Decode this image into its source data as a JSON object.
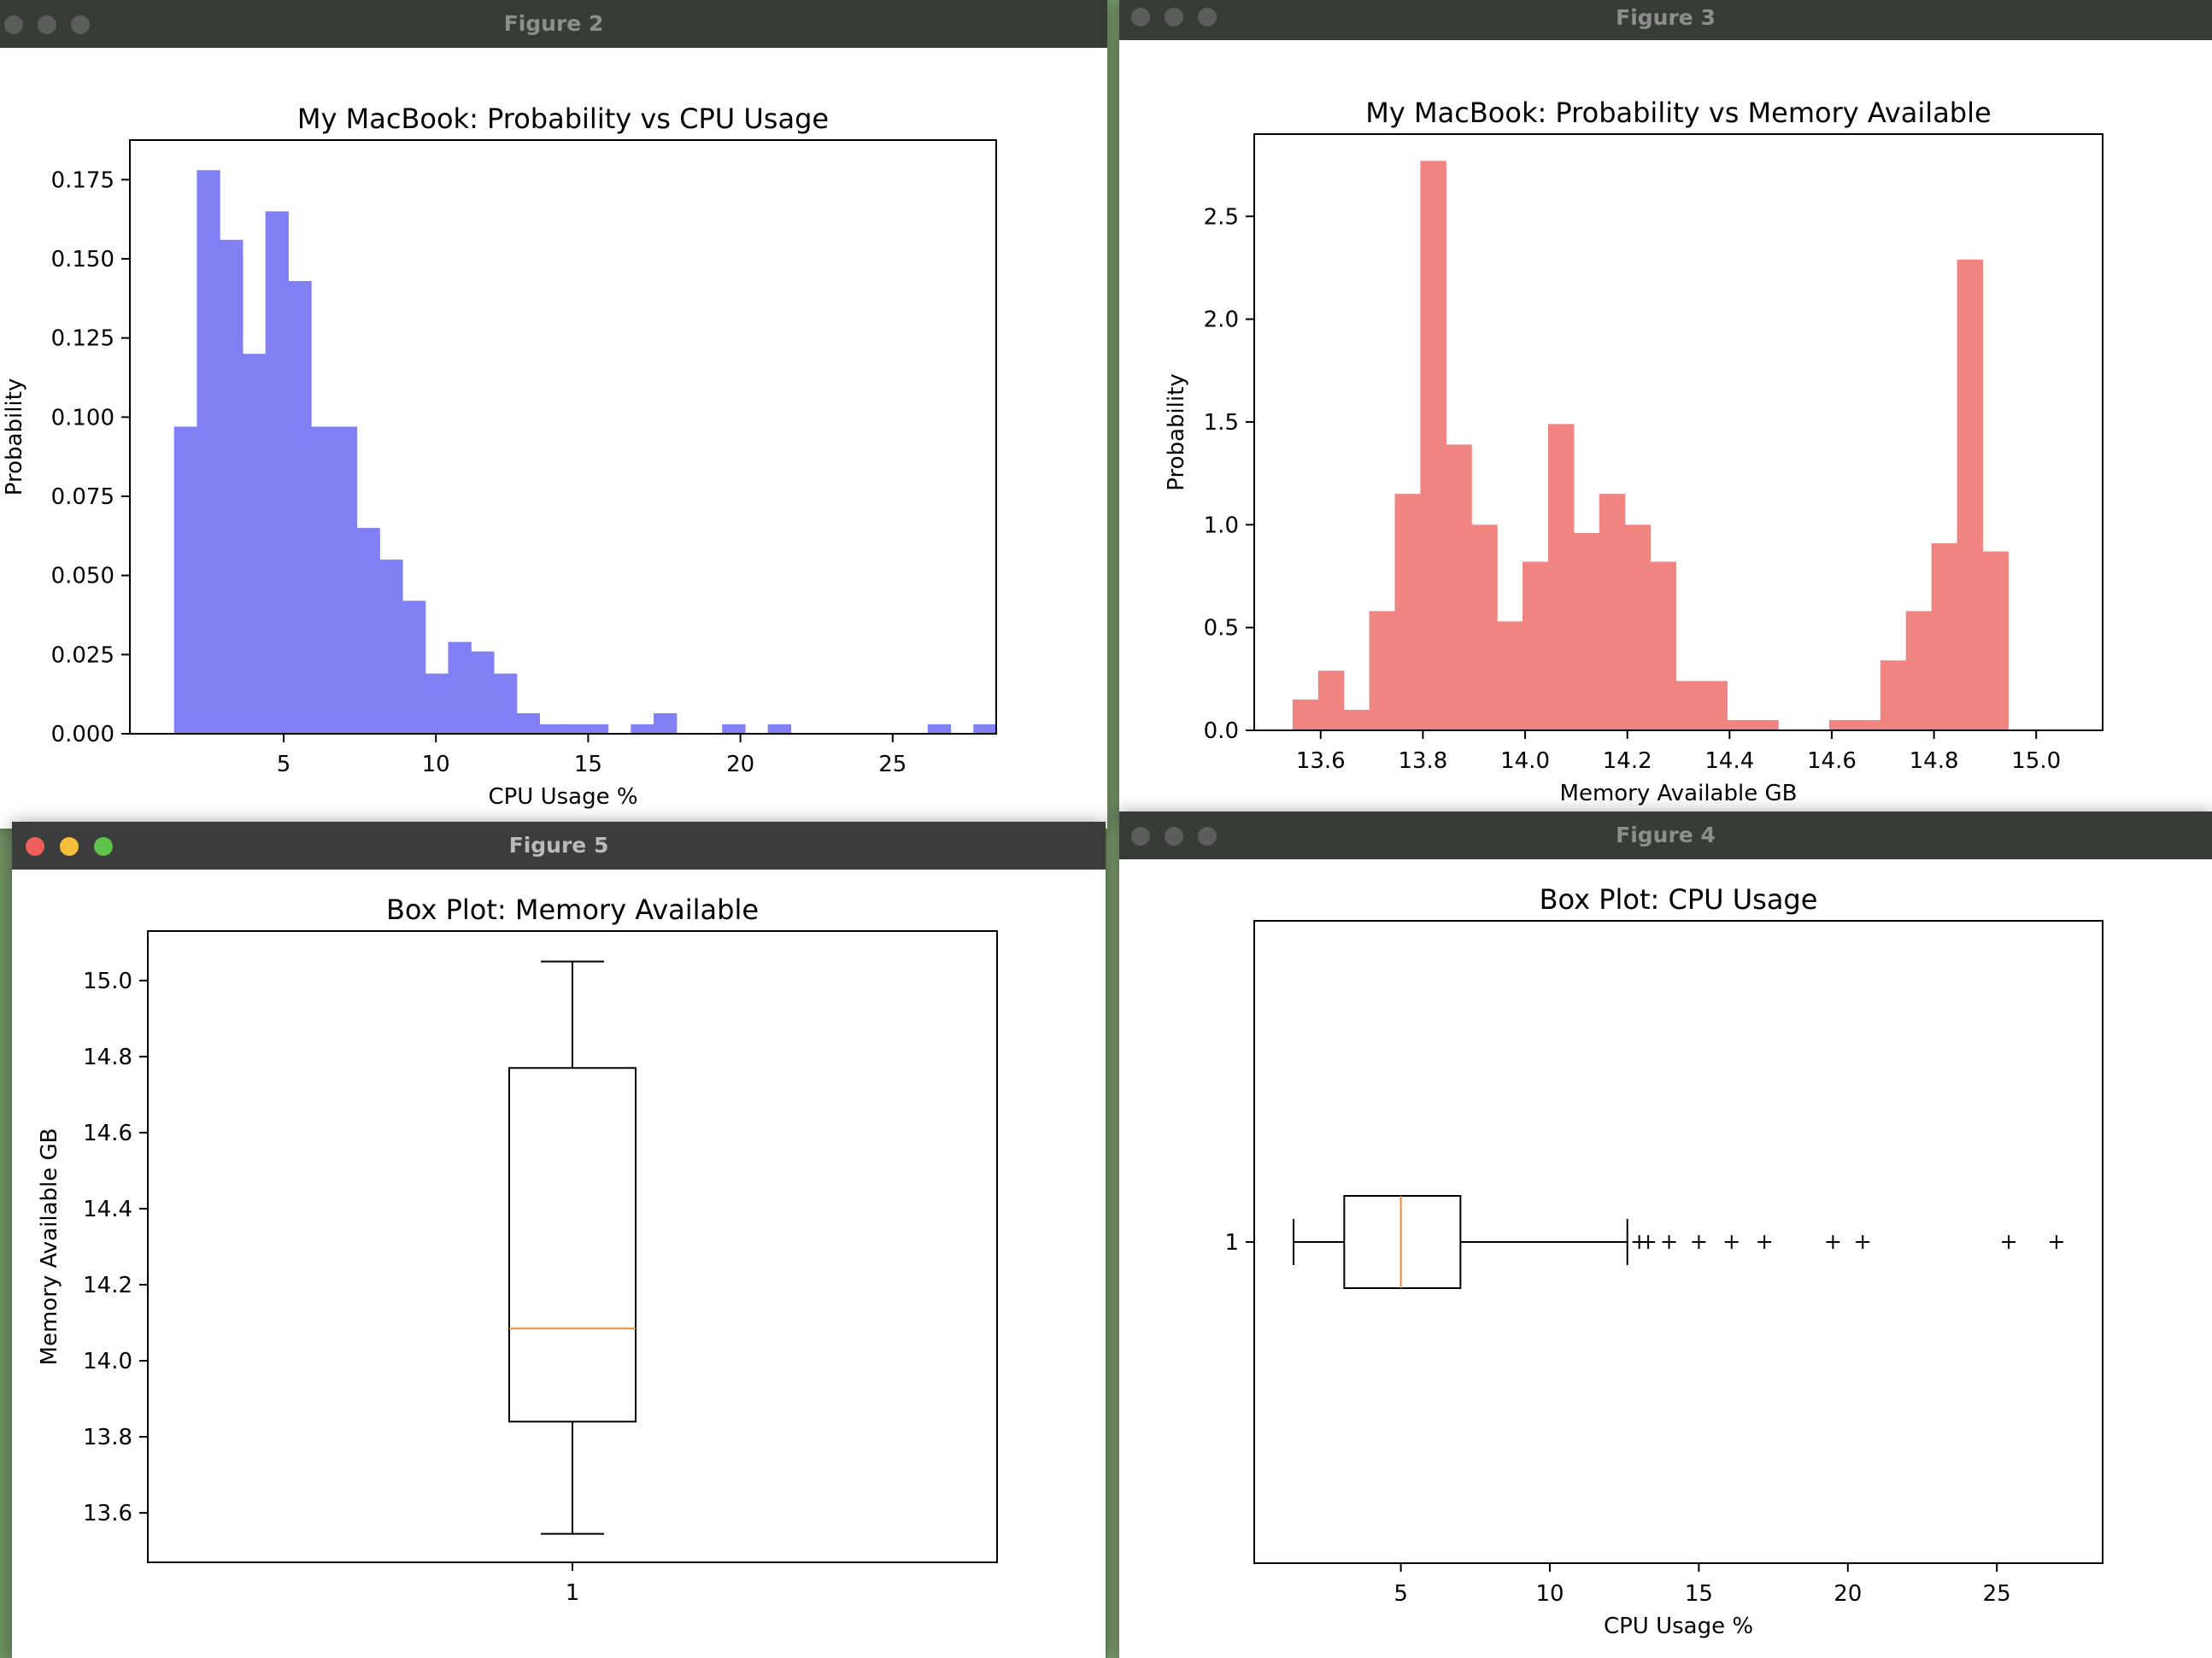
{
  "windows": {
    "fig2": {
      "title": "Figure 2"
    },
    "fig3": {
      "title": "Figure 3"
    },
    "fig5": {
      "title": "Figure 5"
    },
    "fig4": {
      "title": "Figure 4"
    }
  },
  "chart_data": [
    {
      "id": "fig2",
      "type": "bar",
      "title": "My MacBook: Probability vs CPU Usage",
      "xlabel": "CPU Usage %",
      "ylabel": "Probability",
      "xlim": [
        -0.05,
        28.4
      ],
      "ylim": [
        0,
        0.1875
      ],
      "xticks": [
        5,
        10,
        15,
        20,
        25
      ],
      "yticks": [
        0.0,
        0.025,
        0.05,
        0.075,
        0.1,
        0.125,
        0.15,
        0.175
      ],
      "ytick_labels": [
        "0.000",
        "0.025",
        "0.050",
        "0.075",
        "0.100",
        "0.125",
        "0.150",
        "0.175"
      ],
      "color": "#8080f4",
      "bin_start": 1.4,
      "bin_width": 0.75,
      "values": [
        0.097,
        0.178,
        0.156,
        0.12,
        0.165,
        0.143,
        0.097,
        0.097,
        0.065,
        0.055,
        0.042,
        0.019,
        0.029,
        0.026,
        0.019,
        0.0065,
        0.003,
        0.003,
        0.003,
        0,
        0.003,
        0.0065,
        0,
        0,
        0.003,
        0,
        0.003,
        0,
        0,
        0,
        0,
        0,
        0,
        0.003,
        0,
        0.003
      ],
      "grid": false
    },
    {
      "id": "fig3",
      "type": "bar",
      "title": "My MacBook: Probability vs Memory Available",
      "xlabel": "Memory Available GB",
      "ylabel": "Probability",
      "xlim": [
        13.47,
        15.13
      ],
      "ylim": [
        0,
        2.9
      ],
      "xticks": [
        13.6,
        13.8,
        14.0,
        14.2,
        14.4,
        14.6,
        14.8,
        15.0
      ],
      "xtick_labels": [
        "13.6",
        "13.8",
        "14.0",
        "14.2",
        "14.4",
        "14.6",
        "14.8",
        "15.0"
      ],
      "yticks": [
        0.0,
        0.5,
        1.0,
        1.5,
        2.0,
        2.5
      ],
      "ytick_labels": [
        "0.0",
        "0.5",
        "1.0",
        "1.5",
        "2.0",
        "2.5"
      ],
      "color": "#ef8480",
      "bin_start": 13.545,
      "bin_width": 0.05,
      "values": [
        0.15,
        0.29,
        0.1,
        0.58,
        1.15,
        2.77,
        1.39,
        1.0,
        0.53,
        0.82,
        1.49,
        0.96,
        1.15,
        1.0,
        0.82,
        0.24,
        0.24,
        0.05,
        0.05,
        0,
        0,
        0.05,
        0.05,
        0.34,
        0.58,
        0.91,
        2.29,
        0.87
      ],
      "grid": false
    },
    {
      "id": "fig5",
      "type": "box",
      "orientation": "vertical",
      "title": "Box Plot: Memory Available",
      "ylabel": "Memory Available GB",
      "xtick_labels": [
        "1"
      ],
      "ylim": [
        13.47,
        15.13
      ],
      "yticks": [
        13.6,
        13.8,
        14.0,
        14.2,
        14.4,
        14.6,
        14.8,
        15.0
      ],
      "ytick_labels": [
        "13.6",
        "13.8",
        "14.0",
        "14.2",
        "14.4",
        "14.6",
        "14.8",
        "15.0"
      ],
      "whisker_low": 13.545,
      "q1": 13.84,
      "median": 14.085,
      "q3": 14.77,
      "whisker_high": 15.05,
      "outliers": []
    },
    {
      "id": "fig4",
      "type": "box",
      "orientation": "horizontal",
      "title": "Box Plot: CPU Usage",
      "xlabel": "CPU Usage %",
      "ytick_labels": [
        "1"
      ],
      "xlim": [
        0.08,
        28.55
      ],
      "xticks": [
        5,
        10,
        15,
        20,
        25
      ],
      "whisker_low": 1.4,
      "q1": 3.1,
      "median": 5.0,
      "q3": 7.0,
      "whisker_high": 12.6,
      "outliers": [
        13.0,
        13.3,
        14.0,
        15.0,
        16.1,
        17.2,
        19.5,
        20.5,
        25.4,
        27.0
      ]
    }
  ]
}
